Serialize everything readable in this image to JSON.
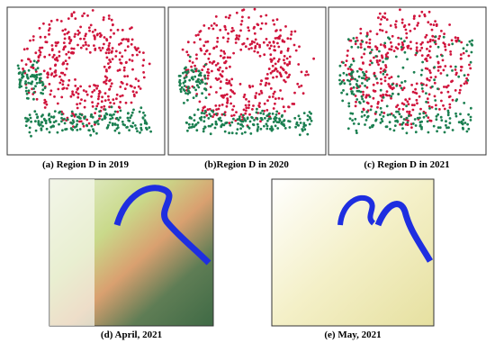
{
  "panels": [
    {
      "caption": "(a) Region D in 2019"
    },
    {
      "caption": "(b)Region D in 2020"
    },
    {
      "caption": "(c) Region D in 2021"
    },
    {
      "caption": "(d) April, 2021"
    },
    {
      "caption": "(e) May, 2021"
    }
  ]
}
